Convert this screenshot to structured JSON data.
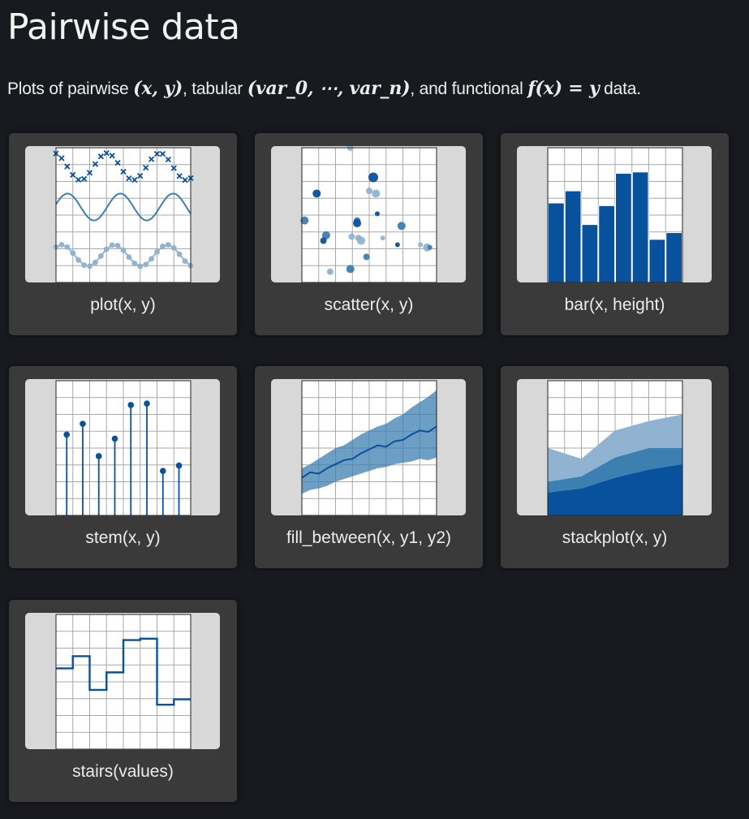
{
  "page": {
    "title": "Pairwise data",
    "intro": {
      "text_plots_of": "Plots of pairwise ",
      "math_pairwise": "(x, y)",
      "text_tabular": ", tabular ",
      "math_tabular": "(var_0, ⋯, var_n)",
      "text_functional": ", and functional ",
      "math_functional": "f(x) = y",
      "text_data": " data."
    }
  },
  "colors": {
    "background": "#181a1f",
    "card": "#3a3a3a",
    "thumbnail": "#d8d8d8",
    "dark_blue": "#08519c",
    "mid_blue": "#3c7fb1",
    "light_blue": "#8fb3d0"
  },
  "cards": [
    {
      "label": "plot(x, y)",
      "icon": "plot-thumbnail"
    },
    {
      "label": "scatter(x, y)",
      "icon": "scatter-thumbnail"
    },
    {
      "label": "bar(x, height)",
      "icon": "bar-thumbnail"
    },
    {
      "label": "stem(x, y)",
      "icon": "stem-thumbnail"
    },
    {
      "label": "fill_between(x, y1, y2)",
      "icon": "fill-between-thumbnail"
    },
    {
      "label": "stackplot(x, y)",
      "icon": "stackplot-thumbnail"
    },
    {
      "label": "stairs(values)",
      "icon": "stairs-thumbnail"
    }
  ]
}
